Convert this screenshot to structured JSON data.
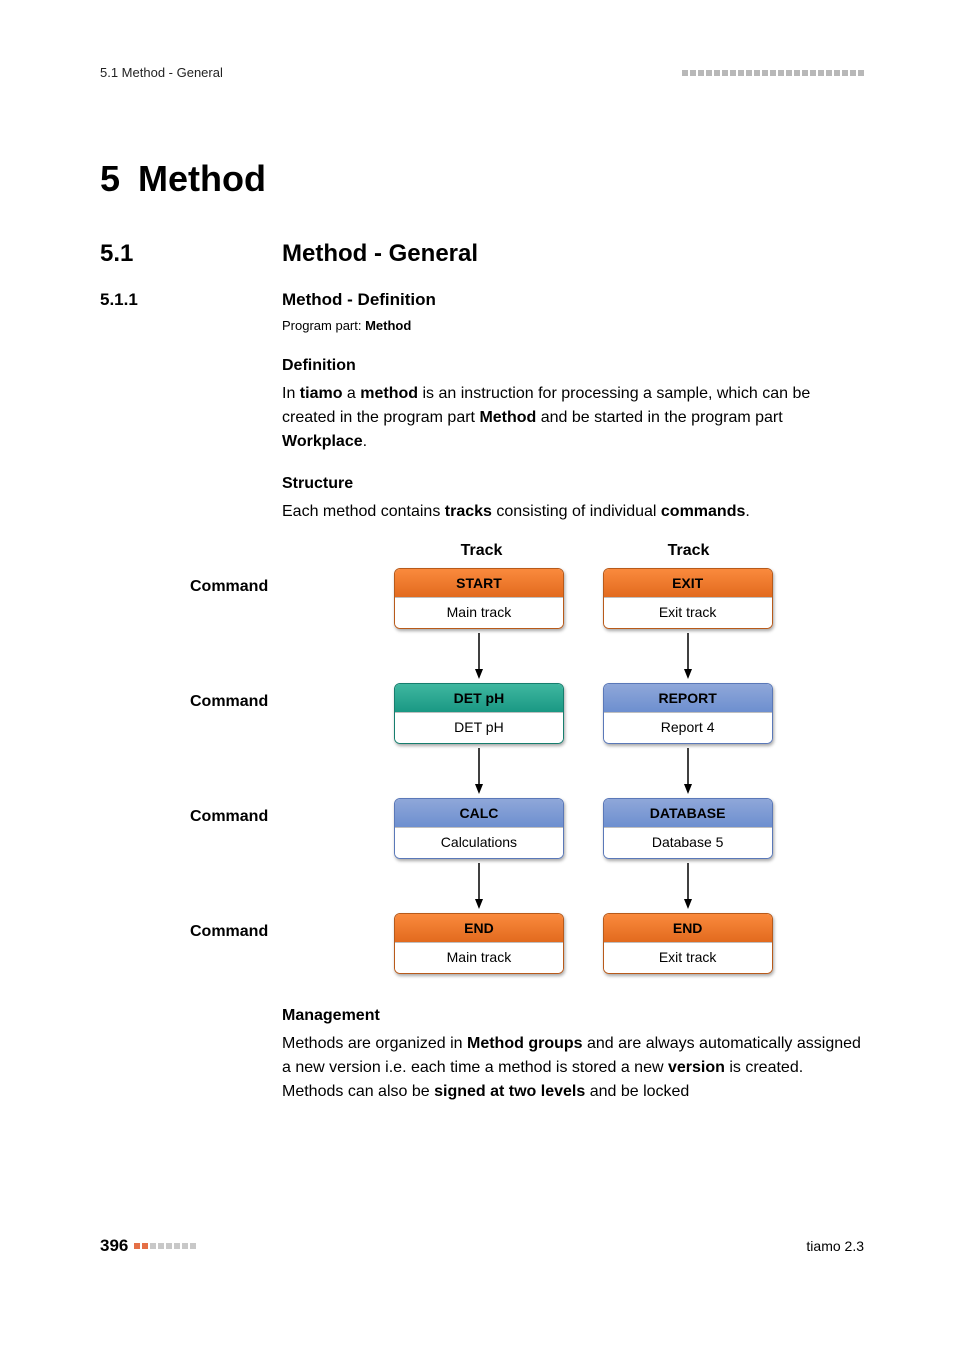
{
  "header": {
    "left": "5.1 Method - General",
    "decor_squares": 23,
    "decor_color": "#b8b8b8"
  },
  "chapter": {
    "number": "5",
    "title": "Method"
  },
  "section": {
    "number": "5.1",
    "title": "Method - General"
  },
  "subsection": {
    "number": "5.1.1",
    "title": "Method - Definition"
  },
  "program_part": {
    "label": "Program part: ",
    "value": "Method"
  },
  "definition": {
    "heading": "Definition",
    "t1": "In ",
    "b1": "tiamo",
    "t2": " a ",
    "b2": "method",
    "t3": " is an instruction for processing a sample, which can be created in the program part ",
    "b3": "Method",
    "t4": " and be started in the program part ",
    "b4": "Workplace",
    "t5": "."
  },
  "structure": {
    "heading": "Structure",
    "t1": "Each method contains ",
    "b1": "tracks",
    "t2": " consisting of individual ",
    "b2": "commands",
    "t3": "."
  },
  "diagram": {
    "row_label": "Command",
    "track_label_a": "Track",
    "track_label_b": "Track",
    "colors": {
      "orange_grad_top": "#fa8a3d",
      "orange_grad_bottom": "#e26a1e",
      "orange_border": "#b85a1a",
      "teal_grad_top": "#3fb7a0",
      "teal_grad_bottom": "#1a9884",
      "teal_border": "#167e6e",
      "blue_grad_top": "#8fa7d9",
      "blue_grad_bottom": "#6d8fcf",
      "blue_border": "#5a78b8",
      "body_bg": "#ffffff",
      "arrow": "#000000"
    },
    "rows": [
      {
        "a": {
          "head": "START",
          "body": "Main track",
          "color": "orange"
        },
        "b": {
          "head": "EXIT",
          "body": "Exit track",
          "color": "orange"
        }
      },
      {
        "a": {
          "head": "DET pH",
          "body": "DET pH",
          "color": "teal"
        },
        "b": {
          "head": "REPORT",
          "body": "Report 4",
          "color": "blue"
        }
      },
      {
        "a": {
          "head": "CALC",
          "body": "Calculations",
          "color": "blue"
        },
        "b": {
          "head": "DATABASE",
          "body": "Database 5",
          "color": "blue"
        }
      },
      {
        "a": {
          "head": "END",
          "body": "Main track",
          "color": "orange"
        },
        "b": {
          "head": "END",
          "body": "Exit track",
          "color": "orange"
        }
      }
    ]
  },
  "management": {
    "heading": "Management",
    "t1": "Methods are organized in ",
    "b1": "Method groups",
    "t2": " and are always automatically assigned a new version i.e. each time a method is stored a new ",
    "b2": "version",
    "t3": " is created. Methods can also be ",
    "b3": "signed at two levels",
    "t4": " and be locked"
  },
  "footer": {
    "page": "396",
    "dot_colors": [
      "#e57046",
      "#e57046",
      "#c8c8c8",
      "#c8c8c8",
      "#c8c8c8",
      "#c8c8c8",
      "#c8c8c8",
      "#c8c8c8"
    ],
    "right": "tiamo 2.3"
  }
}
